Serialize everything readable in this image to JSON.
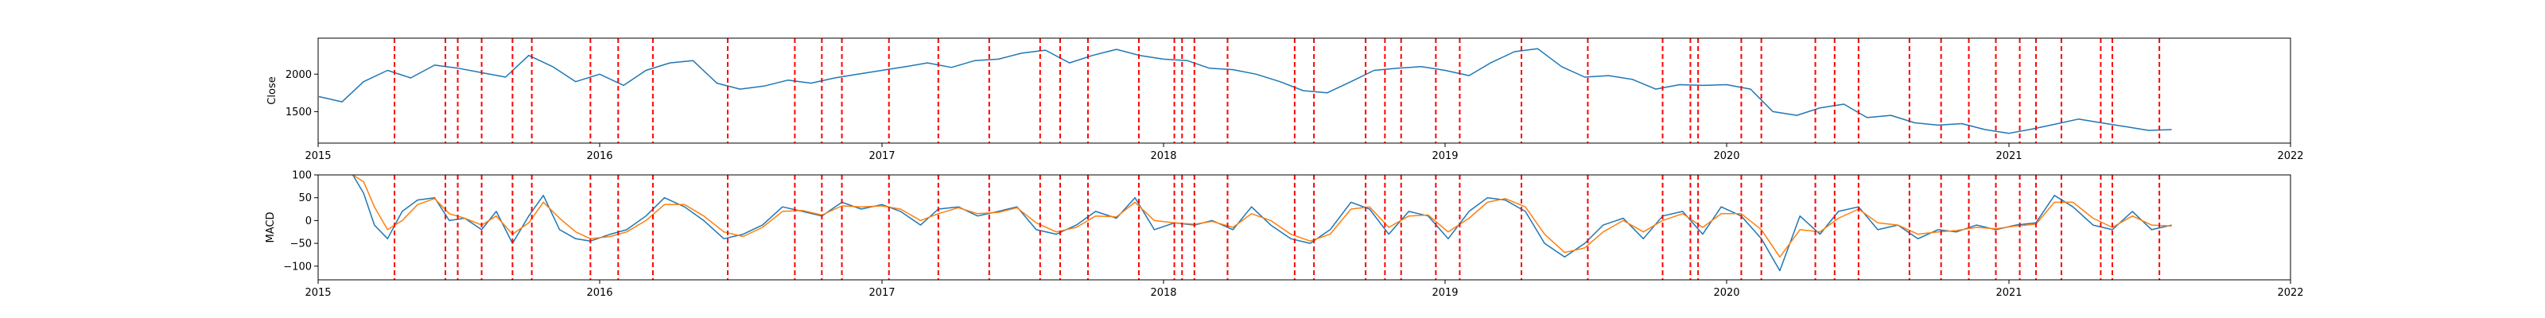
{
  "chart_data": [
    {
      "type": "line",
      "ylabel": "Close",
      "xlim": [
        "2015-01-01",
        "2022-01-01"
      ],
      "ylim": [
        1080,
        2480
      ],
      "xtick_labels": [
        "2015",
        "2016",
        "2017",
        "2018",
        "2019",
        "2020",
        "2021",
        "2022"
      ],
      "ytick_labels": [
        "1500",
        "2000"
      ],
      "yticks": [
        1500,
        2000
      ],
      "grid": false,
      "colors": {
        "series": "#1f77b4",
        "markers": "#ff0000"
      },
      "series": [
        {
          "x": [
            "2015-01-02",
            "2015-02-01",
            "2015-03-01",
            "2015-04-01",
            "2015-05-01",
            "2015-06-01",
            "2015-07-01",
            "2015-08-01",
            "2015-09-01",
            "2015-10-01",
            "2015-11-01",
            "2015-12-01",
            "2016-01-01",
            "2016-02-01",
            "2016-03-01",
            "2016-04-01",
            "2016-05-01",
            "2016-06-01",
            "2016-07-01",
            "2016-08-01",
            "2016-09-01",
            "2016-10-01",
            "2016-11-01",
            "2016-12-01",
            "2017-01-01",
            "2017-02-01",
            "2017-03-01",
            "2017-04-01",
            "2017-05-01",
            "2017-06-01",
            "2017-07-01",
            "2017-08-01",
            "2017-09-01",
            "2017-10-01",
            "2017-11-01",
            "2017-12-01",
            "2018-01-01",
            "2018-02-01",
            "2018-03-01",
            "2018-04-01",
            "2018-05-01",
            "2018-06-01",
            "2018-07-01",
            "2018-08-01",
            "2018-09-01",
            "2018-10-01",
            "2018-11-01",
            "2018-12-01",
            "2019-01-01",
            "2019-02-01",
            "2019-03-01",
            "2019-04-01",
            "2019-05-01",
            "2019-06-01",
            "2019-07-01",
            "2019-08-01",
            "2019-09-01",
            "2019-10-01",
            "2019-11-01",
            "2019-12-01",
            "2020-01-01",
            "2020-02-01",
            "2020-03-01",
            "2020-04-01",
            "2020-05-01",
            "2020-06-01",
            "2020-07-01",
            "2020-08-01",
            "2020-09-01",
            "2020-10-01",
            "2020-11-01",
            "2020-12-01",
            "2021-01-01",
            "2021-02-01",
            "2021-03-01",
            "2021-04-01",
            "2021-05-01",
            "2021-06-01",
            "2021-07-01",
            "2021-07-31"
          ],
          "values": [
            1700,
            1630,
            1900,
            2050,
            1950,
            2120,
            2080,
            2020,
            1960,
            2250,
            2100,
            1900,
            2000,
            1850,
            2050,
            2150,
            2180,
            1880,
            1800,
            1840,
            1920,
            1880,
            1950,
            2000,
            2050,
            2100,
            2150,
            2090,
            2180,
            2200,
            2280,
            2320,
            2150,
            2250,
            2330,
            2250,
            2200,
            2180,
            2080,
            2060,
            2000,
            1900,
            1780,
            1750,
            1900,
            2050,
            2080,
            2100,
            2050,
            1980,
            2150,
            2300,
            2340,
            2100,
            1960,
            1980,
            1930,
            1800,
            1860,
            1850,
            1860,
            1800,
            1500,
            1450,
            1550,
            1600,
            1420,
            1450,
            1350,
            1320,
            1340,
            1260,
            1210,
            1270,
            1330,
            1400,
            1350,
            1300,
            1250,
            1260
          ]
        }
      ]
    },
    {
      "type": "line",
      "ylabel": "MACD",
      "xlim": [
        "2015-01-01",
        "2022-01-01"
      ],
      "ylim": [
        -130,
        100
      ],
      "xtick_labels": [
        "2015",
        "2016",
        "2017",
        "2018",
        "2019",
        "2020",
        "2021",
        "2022"
      ],
      "ytick_labels": [
        "−100",
        "−50",
        "0",
        "50",
        "100"
      ],
      "yticks": [
        -100,
        -50,
        0,
        50,
        100
      ],
      "grid": false,
      "colors": {
        "macd": "#1f77b4",
        "signal": "#ff7f0e",
        "markers": "#ff0000"
      },
      "series": [
        {
          "x": [
            "2015-02-15",
            "2015-03-01",
            "2015-03-15",
            "2015-04-01",
            "2015-04-20",
            "2015-05-10",
            "2015-06-01",
            "2015-06-20",
            "2015-07-10",
            "2015-08-01",
            "2015-08-20",
            "2015-09-10",
            "2015-10-01",
            "2015-10-20",
            "2015-11-10",
            "2015-12-01",
            "2015-12-20",
            "2016-01-15",
            "2016-02-05",
            "2016-03-01",
            "2016-03-25",
            "2016-04-20",
            "2016-05-15",
            "2016-06-10",
            "2016-07-05",
            "2016-07-30",
            "2016-08-25",
            "2016-09-20",
            "2016-10-15",
            "2016-11-10",
            "2016-12-05",
            "2017-01-01",
            "2017-01-25",
            "2017-02-20",
            "2017-03-15",
            "2017-04-10",
            "2017-05-05",
            "2017-06-01",
            "2017-06-25",
            "2017-07-20",
            "2017-08-15",
            "2017-09-10",
            "2017-10-05",
            "2017-11-01",
            "2017-11-25",
            "2017-12-20",
            "2018-01-15",
            "2018-02-10",
            "2018-03-05",
            "2018-04-01",
            "2018-04-25",
            "2018-05-20",
            "2018-06-15",
            "2018-07-10",
            "2018-08-05",
            "2018-09-01",
            "2018-09-25",
            "2018-10-20",
            "2018-11-15",
            "2018-12-10",
            "2019-01-05",
            "2019-02-01",
            "2019-02-25",
            "2019-03-20",
            "2019-04-15",
            "2019-05-10",
            "2019-06-05",
            "2019-07-01",
            "2019-07-25",
            "2019-08-20",
            "2019-09-15",
            "2019-10-10",
            "2019-11-05",
            "2019-12-01",
            "2019-12-25",
            "2020-01-20",
            "2020-02-15",
            "2020-03-10",
            "2020-04-05",
            "2020-05-01",
            "2020-05-25",
            "2020-06-20",
            "2020-07-15",
            "2020-08-10",
            "2020-09-05",
            "2020-10-01",
            "2020-10-25",
            "2020-11-20",
            "2020-12-15",
            "2021-01-10",
            "2021-02-05",
            "2021-03-01",
            "2021-03-25",
            "2021-04-20",
            "2021-05-15",
            "2021-06-10",
            "2021-07-05",
            "2021-07-31"
          ],
          "name": "",
          "values": [
            100,
            60,
            -10,
            -40,
            20,
            45,
            50,
            0,
            5,
            -20,
            20,
            -50,
            10,
            55,
            -20,
            -40,
            -45,
            -30,
            -20,
            10,
            50,
            30,
            0,
            -40,
            -30,
            -10,
            30,
            20,
            10,
            40,
            25,
            35,
            20,
            -10,
            25,
            30,
            10,
            20,
            30,
            -20,
            -30,
            -10,
            20,
            5,
            50,
            -20,
            -5,
            -10,
            0,
            -20,
            30,
            -10,
            -40,
            -50,
            -20,
            40,
            25,
            -30,
            20,
            10,
            -40,
            20,
            50,
            45,
            20,
            -50,
            -80,
            -50,
            -10,
            5,
            -40,
            10,
            20,
            -30,
            30,
            10,
            -40,
            -110,
            10,
            -30,
            20,
            30,
            -20,
            -10,
            -40,
            -20,
            -25,
            -10,
            -20,
            -10,
            -5,
            55,
            30,
            -10,
            -20,
            20,
            -20,
            -10
          ]
        },
        {
          "x": [
            "2015-02-15",
            "2015-03-01",
            "2015-03-15",
            "2015-04-01",
            "2015-04-20",
            "2015-05-10",
            "2015-06-01",
            "2015-06-20",
            "2015-07-10",
            "2015-08-01",
            "2015-08-20",
            "2015-09-10",
            "2015-10-01",
            "2015-10-20",
            "2015-11-10",
            "2015-12-01",
            "2015-12-20",
            "2016-01-15",
            "2016-02-05",
            "2016-03-01",
            "2016-03-25",
            "2016-04-20",
            "2016-05-15",
            "2016-06-10",
            "2016-07-05",
            "2016-07-30",
            "2016-08-25",
            "2016-09-20",
            "2016-10-15",
            "2016-11-10",
            "2016-12-05",
            "2017-01-01",
            "2017-01-25",
            "2017-02-20",
            "2017-03-15",
            "2017-04-10",
            "2017-05-05",
            "2017-06-01",
            "2017-06-25",
            "2017-07-20",
            "2017-08-15",
            "2017-09-10",
            "2017-10-05",
            "2017-11-01",
            "2017-11-25",
            "2017-12-20",
            "2018-01-15",
            "2018-02-10",
            "2018-03-05",
            "2018-04-01",
            "2018-04-25",
            "2018-05-20",
            "2018-06-15",
            "2018-07-10",
            "2018-08-05",
            "2018-09-01",
            "2018-09-25",
            "2018-10-20",
            "2018-11-15",
            "2018-12-10",
            "2019-01-05",
            "2019-02-01",
            "2019-02-25",
            "2019-03-20",
            "2019-04-15",
            "2019-05-10",
            "2019-06-05",
            "2019-07-01",
            "2019-07-25",
            "2019-08-20",
            "2019-09-15",
            "2019-10-10",
            "2019-11-05",
            "2019-12-01",
            "2019-12-25",
            "2020-01-20",
            "2020-02-15",
            "2020-03-10",
            "2020-04-05",
            "2020-05-01",
            "2020-05-25",
            "2020-06-20",
            "2020-07-15",
            "2020-08-10",
            "2020-09-05",
            "2020-10-01",
            "2020-10-25",
            "2020-11-20",
            "2020-12-15",
            "2021-01-10",
            "2021-02-05",
            "2021-03-01",
            "2021-03-25",
            "2021-04-20",
            "2021-05-15",
            "2021-06-10",
            "2021-07-05",
            "2021-07-31"
          ],
          "name": "",
          "values": [
            100,
            85,
            30,
            -20,
            0,
            35,
            48,
            15,
            5,
            -10,
            10,
            -30,
            -5,
            40,
            5,
            -25,
            -40,
            -35,
            -25,
            0,
            35,
            35,
            10,
            -25,
            -35,
            -15,
            20,
            22,
            12,
            32,
            30,
            32,
            25,
            0,
            15,
            28,
            15,
            18,
            28,
            -5,
            -25,
            -15,
            10,
            8,
            40,
            0,
            -5,
            -8,
            -2,
            -15,
            15,
            0,
            -30,
            -45,
            -30,
            25,
            30,
            -15,
            10,
            12,
            -25,
            5,
            40,
            48,
            30,
            -30,
            -70,
            -60,
            -25,
            0,
            -25,
            0,
            15,
            -15,
            15,
            15,
            -20,
            -80,
            -20,
            -25,
            5,
            25,
            -5,
            -10,
            -30,
            -25,
            -22,
            -15,
            -18,
            -12,
            -8,
            40,
            40,
            5,
            -15,
            10,
            -10,
            -12
          ]
        }
      ]
    }
  ],
  "event_dates": [
    "2015-04-10",
    "2015-06-15",
    "2015-07-01",
    "2015-08-01",
    "2015-09-10",
    "2015-10-05",
    "2015-12-20",
    "2016-01-25",
    "2016-03-10",
    "2016-06-15",
    "2016-09-10",
    "2016-10-15",
    "2016-11-10",
    "2017-01-10",
    "2017-03-15",
    "2017-05-20",
    "2017-07-25",
    "2017-08-20",
    "2017-09-25",
    "2017-11-30",
    "2018-01-15",
    "2018-01-25",
    "2018-02-10",
    "2018-03-25",
    "2018-06-20",
    "2018-07-15",
    "2018-09-20",
    "2018-10-15",
    "2018-11-05",
    "2018-12-20",
    "2019-01-20",
    "2019-04-10",
    "2019-07-05",
    "2019-10-10",
    "2019-11-15",
    "2019-11-25",
    "2020-01-20",
    "2020-02-15",
    "2020-04-25",
    "2020-05-20",
    "2020-06-20",
    "2020-08-25",
    "2020-10-05",
    "2020-11-10",
    "2020-12-15",
    "2021-01-15",
    "2021-02-05",
    "2021-03-10",
    "2021-04-30",
    "2021-05-15",
    "2021-07-15"
  ]
}
